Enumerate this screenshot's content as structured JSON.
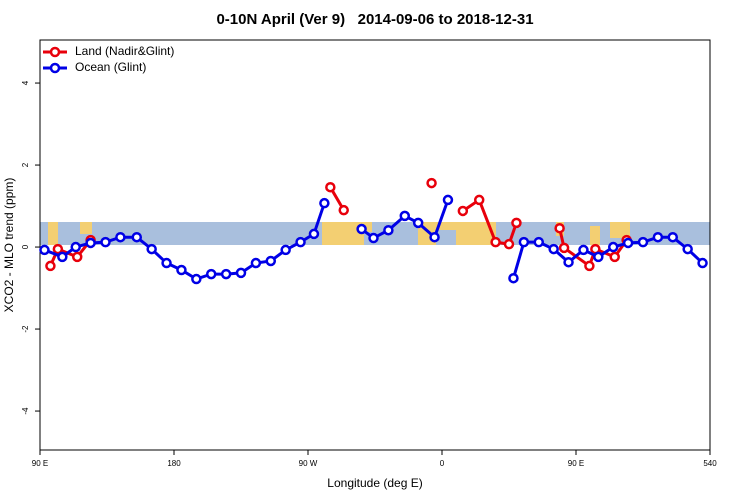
{
  "chart_data": {
    "type": "line",
    "title": "0-10N April (Ver 9)   2014-09-06 to 2018-12-31",
    "x_label": "Longitude (deg E)",
    "y_label": "XCO2 - MLO trend (ppm)",
    "xlim": [
      90,
      540
    ],
    "xticks": [
      {
        "value": 90,
        "label": "90 E"
      },
      180,
      {
        "value": 270,
        "label": "90 W"
      },
      {
        "value": 360,
        "label": "0"
      },
      {
        "value": 450,
        "label": "90 E"
      },
      540
    ],
    "ylim": [
      -4.95,
      5.05
    ],
    "yticks": [
      -4,
      -2,
      0,
      2,
      4
    ],
    "legend": "top-left",
    "series": [
      {
        "name": "Land (Nadir&Glint)",
        "color": "#e8000b",
        "x": [
          97,
          102,
          115,
          124,
          200,
          285,
          294,
          320,
          353,
          365,
          374,
          385,
          396,
          405,
          410,
          425,
          439,
          442,
          459,
          463,
          476,
          484
        ],
        "values": [
          -0.46,
          -0.05,
          -0.24,
          0.17,
          null,
          1.46,
          0.9,
          null,
          1.56,
          null,
          0.88,
          1.15,
          0.12,
          0.07,
          0.59,
          null,
          0.46,
          -0.02,
          -0.46,
          -0.05,
          -0.24,
          0.17
        ]
      },
      {
        "name": "Ocean (Glint)",
        "color": "#0000e6",
        "x": [
          93,
          105,
          114,
          124,
          134,
          144,
          155,
          165,
          175,
          185,
          195,
          205,
          215,
          225,
          235,
          245,
          255,
          265,
          274,
          281,
          293,
          306,
          314,
          324,
          335,
          344,
          355,
          364,
          385,
          408,
          415,
          425,
          435,
          445,
          455,
          465,
          475,
          485,
          495,
          505,
          515,
          525,
          535
        ],
        "values": [
          -0.07,
          -0.24,
          0,
          0.1,
          0.12,
          0.24,
          0.24,
          -0.05,
          -0.39,
          -0.56,
          -0.78,
          -0.66,
          -0.66,
          -0.63,
          -0.39,
          -0.34,
          -0.07,
          0.12,
          0.32,
          1.07,
          null,
          0.44,
          0.22,
          0.41,
          0.76,
          0.59,
          0.24,
          1.15,
          null,
          -0.76,
          0.12,
          0.12,
          -0.05,
          -0.37,
          -0.07,
          -0.24,
          0,
          0.1,
          0.12,
          0.24,
          0.24,
          -0.05,
          -0.39
        ]
      }
    ]
  }
}
